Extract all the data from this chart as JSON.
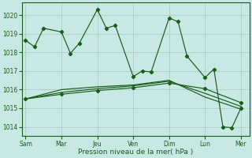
{
  "xlabel": "Pression niveau de la mer( hPa )",
  "ylim": [
    1013.5,
    1020.7
  ],
  "yticks": [
    1014,
    1015,
    1016,
    1017,
    1018,
    1019,
    1020
  ],
  "xtick_labels": [
    "Sam",
    "Mar",
    "Jeu",
    "Ven",
    "Dim",
    "Lun",
    "Mer"
  ],
  "xtick_positions": [
    0,
    28,
    56,
    84,
    112,
    140,
    168
  ],
  "xlim": [
    -3,
    175
  ],
  "bg_color": "#c8e8e4",
  "line_color": "#1a5c1a",
  "grid_color": "#a0c0bc",
  "series_main_x": [
    0,
    7,
    14,
    28,
    35,
    42,
    56,
    63,
    70,
    84,
    91,
    98,
    112,
    119,
    126,
    140,
    147,
    154,
    161,
    168
  ],
  "series_main_y": [
    1018.65,
    1018.3,
    1019.3,
    1019.1,
    1017.95,
    1018.5,
    1020.3,
    1019.3,
    1019.45,
    1016.7,
    1017.0,
    1016.95,
    1019.85,
    1019.65,
    1017.8,
    1016.65,
    1017.1,
    1014.0,
    1013.95,
    1015.0
  ],
  "series2_x": [
    0,
    28,
    56,
    84,
    112,
    140,
    168
  ],
  "series2_y": [
    1015.5,
    1015.75,
    1015.95,
    1016.1,
    1016.35,
    1016.05,
    1015.3
  ],
  "series3_x": [
    0,
    28,
    56,
    84,
    112,
    140,
    168
  ],
  "series3_y": [
    1015.5,
    1015.85,
    1016.05,
    1016.2,
    1016.45,
    1015.8,
    1015.1
  ],
  "series4_x": [
    0,
    28,
    56,
    84,
    112,
    140,
    168
  ],
  "series4_y": [
    1015.5,
    1016.0,
    1016.15,
    1016.25,
    1016.5,
    1015.6,
    1014.95
  ],
  "marker_size": 2.2,
  "linewidth": 0.85
}
